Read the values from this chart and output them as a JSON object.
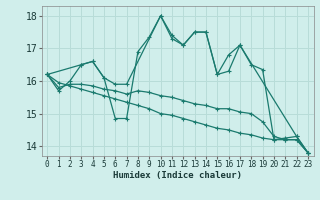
{
  "xlabel": "Humidex (Indice chaleur)",
  "background_color": "#d0eeeb",
  "grid_color": "#b8dcd8",
  "line_color": "#1a7a6e",
  "xlim": [
    -0.5,
    23.5
  ],
  "ylim": [
    13.7,
    18.3
  ],
  "yticks": [
    14,
    15,
    16,
    17,
    18
  ],
  "xticks": [
    0,
    1,
    2,
    3,
    4,
    5,
    6,
    7,
    8,
    9,
    10,
    11,
    12,
    13,
    14,
    15,
    16,
    17,
    18,
    19,
    20,
    21,
    22,
    23
  ],
  "series": [
    {
      "x": [
        0,
        1,
        2,
        3,
        4,
        5,
        6,
        7,
        8,
        9,
        10,
        11,
        12,
        13,
        14,
        15,
        16,
        17,
        18,
        19,
        20,
        21,
        22,
        23
      ],
      "y": [
        16.2,
        15.7,
        16.0,
        16.5,
        16.6,
        16.1,
        14.85,
        14.85,
        16.9,
        17.35,
        18.0,
        17.4,
        17.1,
        17.5,
        17.5,
        16.2,
        16.3,
        17.1,
        16.5,
        16.35,
        14.2,
        14.25,
        14.3,
        13.8
      ]
    },
    {
      "x": [
        0,
        3,
        4,
        5,
        6,
        7,
        10,
        11,
        12,
        13,
        14,
        15,
        16,
        17,
        22,
        23
      ],
      "y": [
        16.2,
        16.5,
        16.6,
        16.1,
        15.9,
        15.9,
        18.0,
        17.3,
        17.1,
        17.5,
        17.5,
        16.2,
        16.8,
        17.1,
        14.3,
        13.8
      ]
    },
    {
      "x": [
        0,
        1,
        2,
        3,
        4,
        5,
        6,
        7,
        8,
        9,
        10,
        11,
        12,
        13,
        14,
        15,
        16,
        17,
        18,
        19,
        20,
        21,
        22,
        23
      ],
      "y": [
        16.2,
        15.8,
        15.9,
        15.9,
        15.85,
        15.75,
        15.7,
        15.6,
        15.7,
        15.65,
        15.55,
        15.5,
        15.4,
        15.3,
        15.25,
        15.15,
        15.15,
        15.05,
        15.0,
        14.75,
        14.3,
        14.2,
        14.2,
        13.8
      ]
    },
    {
      "x": [
        0,
        1,
        2,
        3,
        4,
        5,
        6,
        7,
        8,
        9,
        10,
        11,
        12,
        13,
        14,
        15,
        16,
        17,
        18,
        19,
        20,
        21,
        22,
        23
      ],
      "y": [
        16.2,
        15.95,
        15.85,
        15.75,
        15.65,
        15.55,
        15.45,
        15.35,
        15.25,
        15.15,
        15.0,
        14.95,
        14.85,
        14.75,
        14.65,
        14.55,
        14.5,
        14.4,
        14.35,
        14.25,
        14.2,
        14.2,
        14.2,
        13.8
      ]
    }
  ]
}
